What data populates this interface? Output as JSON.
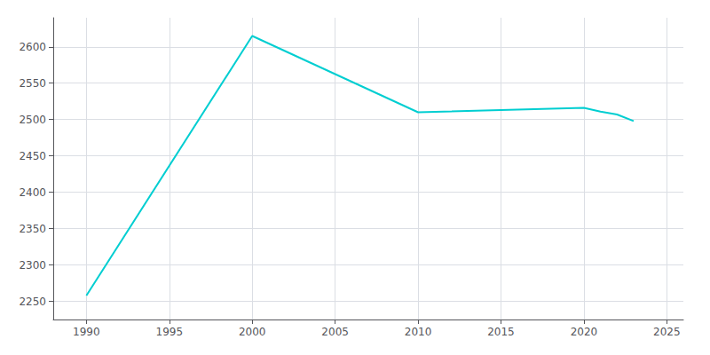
{
  "chart_data": {
    "type": "line",
    "x": [
      1990,
      2000,
      2010,
      2020,
      2021,
      2022,
      2023
    ],
    "values": [
      2258,
      2615,
      2510,
      2516,
      2511,
      2507,
      2498
    ],
    "color": "#00CED1",
    "xlim": [
      1988,
      2026
    ],
    "ylim": [
      2225,
      2640
    ],
    "xticks": [
      1990,
      1995,
      2000,
      2005,
      2010,
      2015,
      2020,
      2025
    ],
    "yticks": [
      2250,
      2300,
      2350,
      2400,
      2450,
      2500,
      2550,
      2600
    ],
    "grid": true
  }
}
